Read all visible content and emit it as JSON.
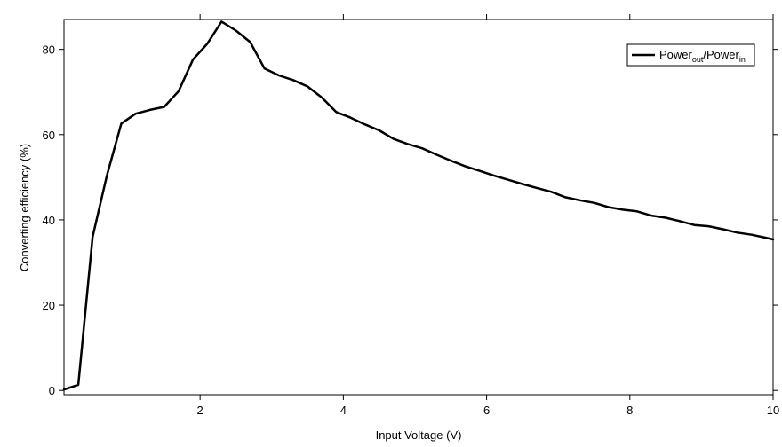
{
  "chart_data": {
    "type": "line",
    "title": "",
    "xlabel": "Input Voltage (V)",
    "ylabel": "Converting efficiency (%)",
    "xlim": [
      0.1,
      10
    ],
    "ylim": [
      -1,
      87
    ],
    "x_ticks": [
      2,
      4,
      6,
      8,
      10
    ],
    "x_tick_labels": [
      "2",
      "4",
      "6",
      "8",
      "10"
    ],
    "y_ticks": [
      0,
      20,
      40,
      60,
      80
    ],
    "y_tick_labels": [
      "0",
      "20",
      "40",
      "60",
      "80"
    ],
    "grid": false,
    "legend_position": "top-right",
    "legend": {
      "main": "Power",
      "sub1": "out",
      "sep": "/Power",
      "sub2": "in"
    },
    "series": [
      {
        "name": "Power_out/Power_in",
        "color": "#000000",
        "x": [
          0.1,
          0.3,
          0.5,
          0.7,
          0.9,
          1.1,
          1.3,
          1.5,
          1.7,
          1.9,
          2.1,
          2.3,
          2.5,
          2.7,
          2.9,
          3.1,
          3.3,
          3.5,
          3.7,
          3.9,
          4.1,
          4.3,
          4.5,
          4.7,
          4.9,
          5.1,
          5.3,
          5.5,
          5.7,
          5.9,
          6.1,
          6.3,
          6.5,
          6.7,
          6.9,
          7.1,
          7.3,
          7.5,
          7.7,
          7.9,
          8.1,
          8.3,
          8.5,
          8.7,
          8.9,
          9.1,
          9.3,
          9.5,
          9.7,
          9.9,
          10.0
        ],
        "y": [
          0.2,
          1.3,
          36.0,
          50.5,
          62.6,
          64.9,
          65.8,
          66.5,
          70.2,
          77.6,
          81.3,
          86.5,
          84.4,
          81.7,
          75.5,
          73.9,
          72.8,
          71.3,
          68.7,
          65.3,
          64.0,
          62.4,
          61.0,
          59.0,
          57.8,
          56.8,
          55.3,
          53.9,
          52.6,
          51.5,
          50.4,
          49.4,
          48.4,
          47.5,
          46.6,
          45.3,
          44.6,
          44.0,
          43.0,
          42.4,
          42.0,
          41.0,
          40.5,
          39.7,
          38.8,
          38.5,
          37.8,
          37.0,
          36.5,
          35.8,
          35.4
        ]
      }
    ]
  }
}
